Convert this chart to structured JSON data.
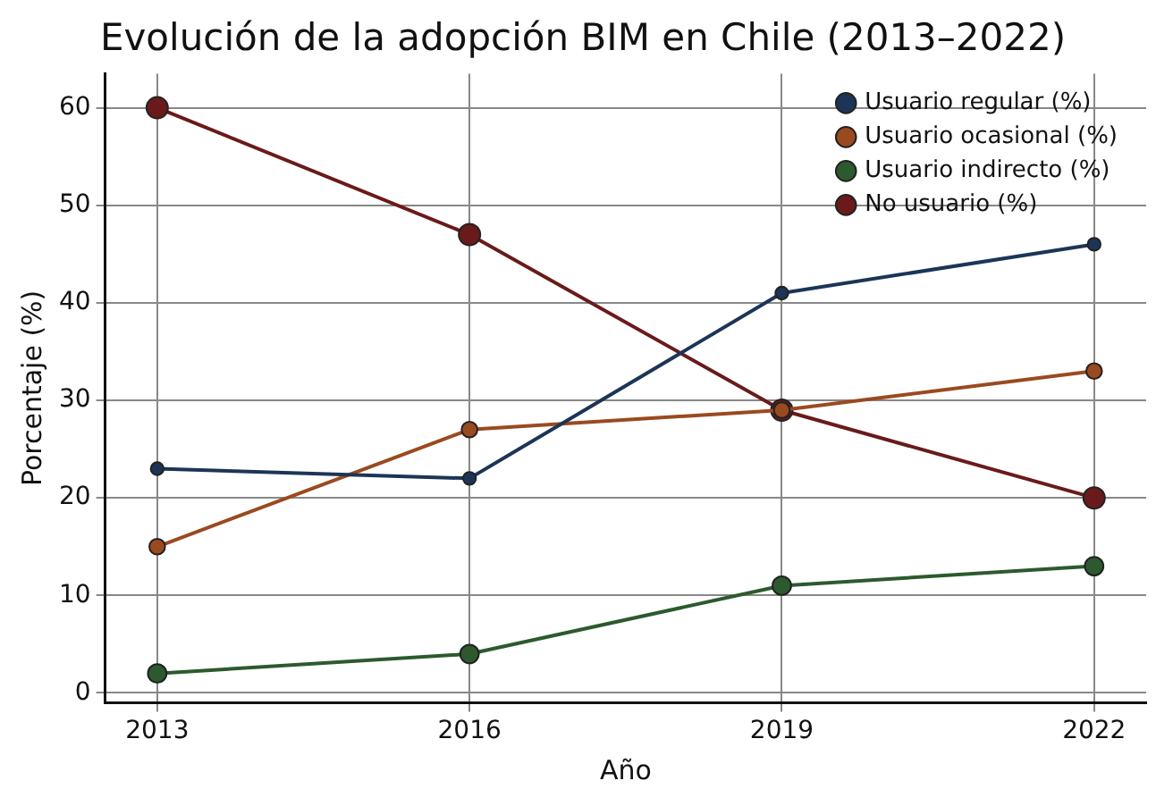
{
  "chart_data": {
    "type": "line",
    "title": "Evolución de la adopción BIM en Chile (2013–2022)",
    "xlabel": "Año",
    "ylabel": "Porcentaje (%)",
    "x": [
      2013,
      2016,
      2019,
      2022
    ],
    "xlim": [
      2012.5,
      2022.5
    ],
    "xticks": [
      2013,
      2016,
      2019,
      2022
    ],
    "ylim": [
      -1,
      63.5
    ],
    "yticks": [
      0,
      10,
      20,
      30,
      40,
      50,
      60
    ],
    "series": [
      {
        "name": "Usuario regular (%)",
        "color": "#1c3557",
        "values": [
          23,
          22,
          41,
          46
        ]
      },
      {
        "name": "Usuario ocasional (%)",
        "color": "#9a4a20",
        "values": [
          15,
          27,
          29,
          33
        ]
      },
      {
        "name": "Usuario indirecto (%)",
        "color": "#2c5a2e",
        "values": [
          2,
          4,
          11,
          13
        ]
      },
      {
        "name": "No usuario (%)",
        "color": "#6a1a1a",
        "values": [
          60,
          47,
          29,
          20
        ]
      }
    ],
    "grid": true,
    "legend": "top right",
    "marker": "circle",
    "line_style": "solid"
  }
}
